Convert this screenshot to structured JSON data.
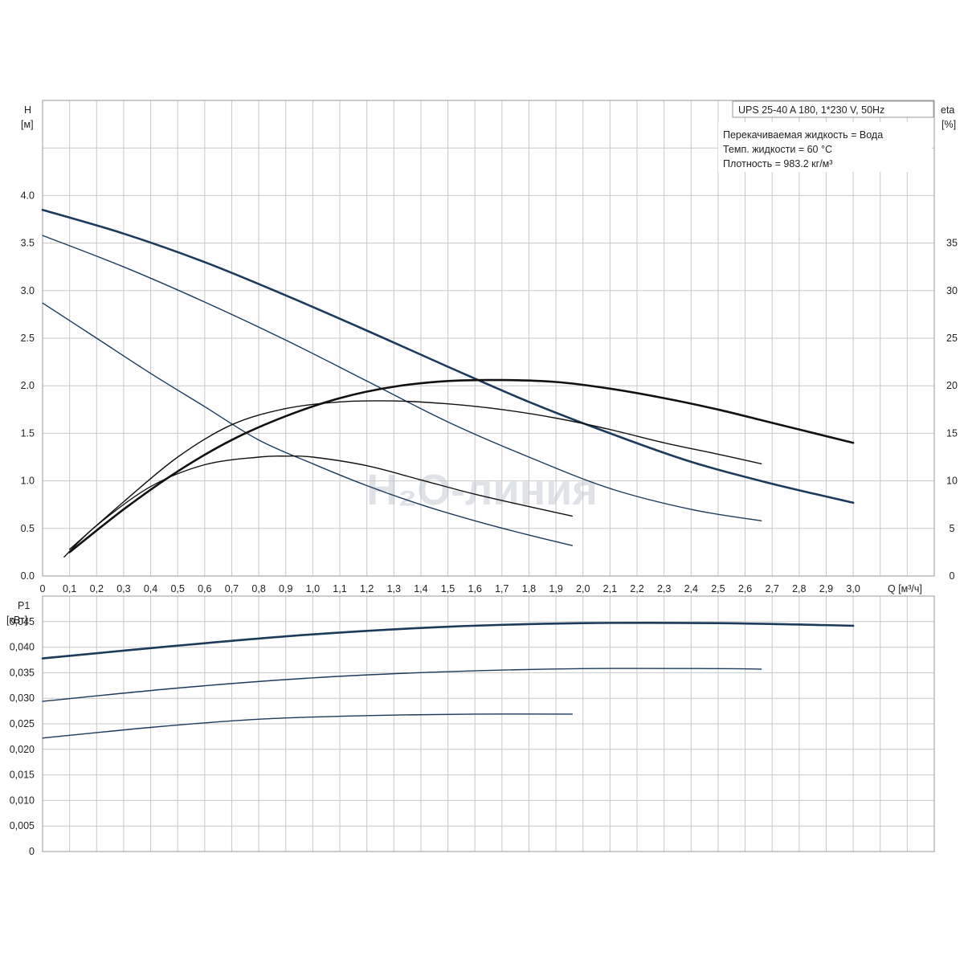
{
  "chart_data": [
    {
      "type": "line",
      "name_box": "UPS 25-40 A 180, 1*230 V, 50Hz",
      "info_lines": [
        "Перекачиваемая жидкость = Вода",
        "Темп. жидкости = 60 °C",
        "Плотность = 983.2 кг/м³"
      ],
      "watermark": "H₂O-линия",
      "y_label": "H",
      "y_unit": "[м]",
      "y2_label": "eta",
      "y2_unit": "[%]",
      "x_label": "Q [м³/ч]",
      "xlim": [
        0,
        3.3
      ],
      "ylim": [
        0,
        5.0
      ],
      "y2lim": [
        0,
        50
      ],
      "x_ticks": [
        "0",
        "0,1",
        "0,2",
        "0,3",
        "0,4",
        "0,5",
        "0,6",
        "0,7",
        "0,8",
        "0,9",
        "1,0",
        "1,1",
        "1,2",
        "1,3",
        "1,4",
        "1,5",
        "1,6",
        "1,7",
        "1,8",
        "1,9",
        "2,0",
        "2,1",
        "2,2",
        "2,3",
        "2,4",
        "2,5",
        "2,6",
        "2,7",
        "2,8",
        "2,9",
        "3,0"
      ],
      "y_ticks": [
        "0.0",
        "0.5",
        "1.0",
        "1.5",
        "2.0",
        "2.5",
        "3.0",
        "3.5",
        "4.0"
      ],
      "y2_ticks": [
        "0",
        "5",
        "10",
        "15",
        "20",
        "25",
        "30",
        "35"
      ],
      "grid": true,
      "series_head": [
        {
          "speed": 3,
          "color": "#1b3a5c",
          "x": [
            0,
            0.3,
            0.6,
            0.9,
            1.2,
            1.5,
            1.8,
            2.1,
            2.4,
            2.7,
            3.0
          ],
          "y": [
            3.85,
            3.6,
            3.3,
            2.95,
            2.58,
            2.2,
            1.83,
            1.5,
            1.2,
            0.97,
            0.77
          ]
        },
        {
          "speed": 2,
          "color": "#1b3a5c",
          "x": [
            0,
            0.3,
            0.6,
            0.9,
            1.2,
            1.5,
            1.8,
            2.1,
            2.4,
            2.66
          ],
          "y": [
            3.58,
            3.25,
            2.88,
            2.48,
            2.05,
            1.62,
            1.25,
            0.92,
            0.7,
            0.58
          ]
        },
        {
          "speed": 1,
          "color": "#1b3a5c",
          "x": [
            0,
            0.2,
            0.4,
            0.6,
            0.8,
            1.0,
            1.2,
            1.4,
            1.6,
            1.8,
            1.96
          ],
          "y": [
            2.87,
            2.5,
            2.13,
            1.78,
            1.43,
            1.18,
            0.95,
            0.75,
            0.58,
            0.43,
            0.32
          ]
        }
      ],
      "series_eta": [
        {
          "speed": 3,
          "color": "#111111",
          "x": [
            0.1,
            0.3,
            0.5,
            0.7,
            0.9,
            1.1,
            1.3,
            1.5,
            1.7,
            1.9,
            2.1,
            2.3,
            2.5,
            2.7,
            3.0
          ],
          "y": [
            2.5,
            7.0,
            11.0,
            14.3,
            16.8,
            18.7,
            19.9,
            20.5,
            20.6,
            20.4,
            19.7,
            18.7,
            17.5,
            16.1,
            14.0
          ]
        },
        {
          "speed": 2,
          "color": "#111111",
          "x": [
            0.1,
            0.3,
            0.5,
            0.7,
            0.9,
            1.1,
            1.3,
            1.5,
            1.7,
            1.9,
            2.1,
            2.3,
            2.5,
            2.66
          ],
          "y": [
            2.8,
            7.8,
            12.5,
            15.9,
            17.6,
            18.3,
            18.4,
            18.1,
            17.5,
            16.6,
            15.4,
            14.0,
            12.8,
            11.8
          ]
        },
        {
          "speed": 1,
          "color": "#111111",
          "x": [
            0.08,
            0.2,
            0.4,
            0.6,
            0.8,
            0.9,
            1.0,
            1.2,
            1.4,
            1.6,
            1.8,
            1.96
          ],
          "y": [
            2.0,
            5.3,
            9.4,
            11.7,
            12.5,
            12.6,
            12.5,
            11.6,
            10.1,
            8.6,
            7.3,
            6.3
          ]
        }
      ]
    },
    {
      "type": "line",
      "y_label": "P1",
      "y_unit": "[кВт]",
      "xlim": [
        0,
        3.3
      ],
      "ylim": [
        0,
        0.05
      ],
      "y_ticks": [
        "0",
        "0,005",
        "0,010",
        "0,015",
        "0,020",
        "0,025",
        "0,030",
        "0,035",
        "0,040",
        "0,045"
      ],
      "grid": true,
      "series_power": [
        {
          "speed": 3,
          "color": "#1b3a5c",
          "x": [
            0,
            0.5,
            1.0,
            1.5,
            2.0,
            2.5,
            3.0
          ],
          "y": [
            0.0378,
            0.0403,
            0.0425,
            0.044,
            0.0447,
            0.0447,
            0.0442
          ]
        },
        {
          "speed": 2,
          "color": "#1b3a5c",
          "x": [
            0,
            0.5,
            1.0,
            1.5,
            2.0,
            2.5,
            2.66
          ],
          "y": [
            0.0294,
            0.032,
            0.034,
            0.0352,
            0.0358,
            0.0358,
            0.0357
          ]
        },
        {
          "speed": 1,
          "color": "#1b3a5c",
          "x": [
            0,
            0.4,
            0.8,
            1.2,
            1.6,
            1.96
          ],
          "y": [
            0.0222,
            0.0243,
            0.0259,
            0.0266,
            0.0269,
            0.0269
          ]
        }
      ]
    }
  ]
}
